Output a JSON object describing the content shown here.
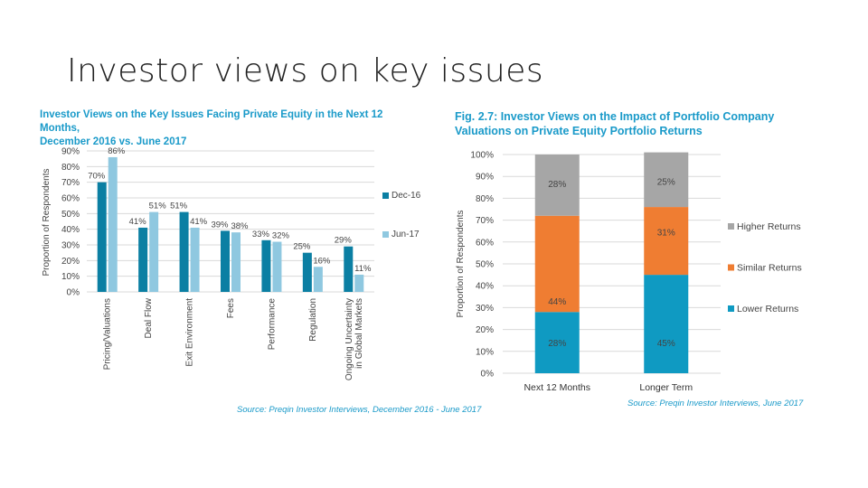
{
  "slide": {
    "title": "Investor views on key issues"
  },
  "chart_data": [
    {
      "type": "bar",
      "title": "Investor Views on the Key Issues Facing Private Equity in the Next 12 Months, December 2016 vs. June 2017",
      "title_lines": [
        "Investor Views on the Key Issues Facing Private Equity in the Next 12 Months,",
        "December 2016 vs. June 2017"
      ],
      "ylabel": "Proportion of Respondents",
      "ylim": [
        0,
        90
      ],
      "yticks": [
        "0%",
        "10%",
        "20%",
        "30%",
        "40%",
        "50%",
        "60%",
        "70%",
        "80%",
        "90%"
      ],
      "categories": [
        "Pricing/Valuations",
        "Deal Flow",
        "Exit Environment",
        "Fees",
        "Performance",
        "Regulation",
        "Ongoing Uncertainty in Global Markets"
      ],
      "category_lines": [
        [
          "Pricing/Valuations"
        ],
        [
          "Deal Flow"
        ],
        [
          "Exit Environment"
        ],
        [
          "Fees"
        ],
        [
          "Performance"
        ],
        [
          "Regulation"
        ],
        [
          "Ongoing Uncertainty",
          "in Global Markets"
        ]
      ],
      "series": [
        {
          "name": "Dec-16",
          "color": "#0b7fa3",
          "values": [
            70,
            41,
            51,
            39,
            33,
            25,
            29
          ],
          "labels": [
            "70%",
            "41%",
            "51%",
            "39%",
            "33%",
            "25%",
            "29%"
          ]
        },
        {
          "name": "Jun-17",
          "color": "#8fc8e0",
          "values": [
            86,
            51,
            41,
            38,
            32,
            16,
            11
          ],
          "labels": [
            "86%",
            "51%",
            "41%",
            "38%",
            "32%",
            "16%",
            "11%"
          ]
        }
      ],
      "legend": "right",
      "grid": true,
      "source": "Source: Preqin Investor Interviews, December 2016 - June 2017"
    },
    {
      "type": "bar",
      "stacked": true,
      "title": "Fig. 2.7: Investor Views on the Impact of Portfolio Company Valuations on Private Equity Portfolio Returns",
      "title_lines": [
        "Fig. 2.7: Investor Views on the Impact of Portfolio Company",
        "Valuations on Private Equity Portfolio Returns"
      ],
      "ylabel": "Proportion of Respondents",
      "ylim": [
        0,
        100
      ],
      "yticks": [
        "0%",
        "10%",
        "20%",
        "30%",
        "40%",
        "50%",
        "60%",
        "70%",
        "80%",
        "90%",
        "100%"
      ],
      "categories": [
        "Next 12 Months",
        "Longer Term"
      ],
      "series": [
        {
          "name": "Lower Returns",
          "color": "#0f9ac2",
          "values": [
            28,
            45
          ],
          "labels": [
            "28%",
            "45%"
          ]
        },
        {
          "name": "Similar Returns",
          "color": "#ef7d32",
          "values": [
            44,
            31
          ],
          "labels": [
            "44%",
            "31%"
          ]
        },
        {
          "name": "Higher Returns",
          "color": "#a6a6a6",
          "values": [
            28,
            25
          ],
          "labels": [
            "28%",
            "25%"
          ]
        }
      ],
      "legend_order": [
        "Higher Returns",
        "Similar Returns",
        "Lower Returns"
      ],
      "legend": "right",
      "grid": true,
      "source": "Source: Preqin Investor Interviews, June 2017"
    }
  ]
}
